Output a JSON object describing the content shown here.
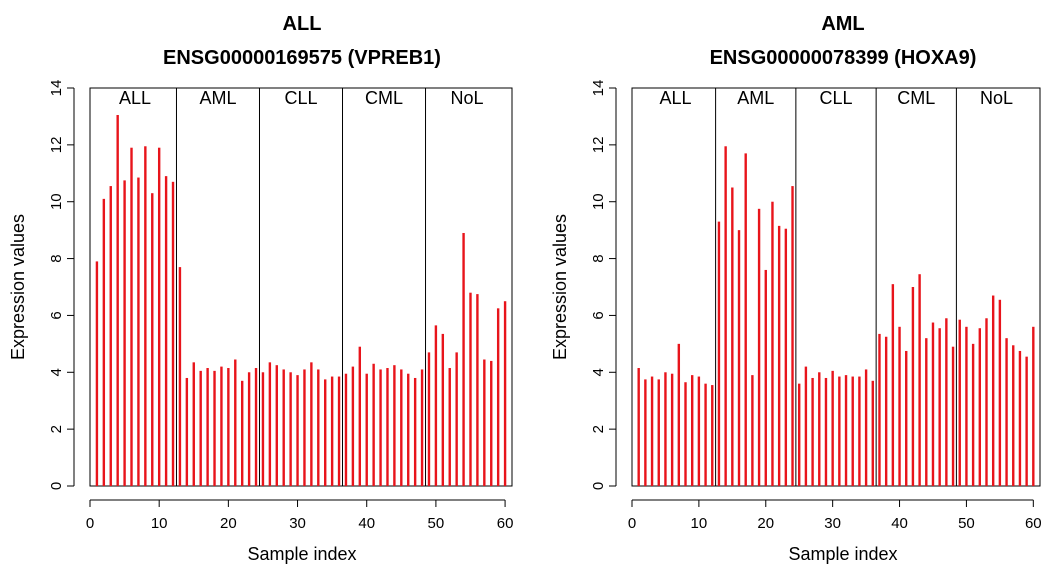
{
  "colors": {
    "bar": "#e8141b",
    "axis": "#000000",
    "background": "#ffffff"
  },
  "chart_data": [
    {
      "type": "bar",
      "title": "ALL",
      "subtitle": "ENSG00000169575 (VPREB1)",
      "xlabel": "Sample index",
      "ylabel": "Expression values",
      "xlim": [
        0,
        61
      ],
      "ylim": [
        0,
        14
      ],
      "xticks": [
        0,
        10,
        20,
        30,
        40,
        50,
        60
      ],
      "yticks": [
        0,
        2,
        4,
        6,
        8,
        10,
        12,
        14
      ],
      "groups": [
        "ALL",
        "AML",
        "CLL",
        "CML",
        "NoL"
      ],
      "group_separators": [
        12.5,
        24.5,
        36.5,
        48.5
      ],
      "grid": false,
      "x": [
        1,
        2,
        3,
        4,
        5,
        6,
        7,
        8,
        9,
        10,
        11,
        12,
        13,
        14,
        15,
        16,
        17,
        18,
        19,
        20,
        21,
        22,
        23,
        24,
        25,
        26,
        27,
        28,
        29,
        30,
        31,
        32,
        33,
        34,
        35,
        36,
        37,
        38,
        39,
        40,
        41,
        42,
        43,
        44,
        45,
        46,
        47,
        48,
        49,
        50,
        51,
        52,
        53,
        54,
        55,
        56,
        57,
        58,
        59,
        60
      ],
      "values": [
        7.9,
        10.1,
        10.55,
        13.05,
        10.75,
        11.9,
        10.85,
        11.95,
        10.3,
        11.9,
        10.9,
        10.7,
        7.7,
        3.8,
        4.35,
        4.05,
        4.15,
        4.05,
        4.2,
        4.15,
        4.45,
        3.7,
        4.0,
        4.15,
        4.0,
        4.35,
        4.25,
        4.1,
        4.0,
        3.9,
        4.1,
        4.35,
        4.1,
        3.75,
        3.85,
        3.85,
        3.95,
        4.2,
        4.9,
        3.95,
        4.3,
        4.1,
        4.15,
        4.25,
        4.1,
        3.95,
        3.8,
        4.1,
        4.7,
        5.65,
        5.35,
        4.15,
        4.7,
        8.9,
        6.8,
        6.75,
        4.45,
        4.4,
        6.25,
        6.5
      ]
    },
    {
      "type": "bar",
      "title": "AML",
      "subtitle": "ENSG00000078399 (HOXA9)",
      "xlabel": "Sample index",
      "ylabel": "Expression values",
      "xlim": [
        0,
        61
      ],
      "ylim": [
        0,
        14
      ],
      "xticks": [
        0,
        10,
        20,
        30,
        40,
        50,
        60
      ],
      "yticks": [
        0,
        2,
        4,
        6,
        8,
        10,
        12,
        14
      ],
      "groups": [
        "ALL",
        "AML",
        "CLL",
        "CML",
        "NoL"
      ],
      "group_separators": [
        12.5,
        24.5,
        36.5,
        48.5
      ],
      "grid": false,
      "x": [
        1,
        2,
        3,
        4,
        5,
        6,
        7,
        8,
        9,
        10,
        11,
        12,
        13,
        14,
        15,
        16,
        17,
        18,
        19,
        20,
        21,
        22,
        23,
        24,
        25,
        26,
        27,
        28,
        29,
        30,
        31,
        32,
        33,
        34,
        35,
        36,
        37,
        38,
        39,
        40,
        41,
        42,
        43,
        44,
        45,
        46,
        47,
        48,
        49,
        50,
        51,
        52,
        53,
        54,
        55,
        56,
        57,
        58,
        59,
        60
      ],
      "values": [
        4.15,
        3.75,
        3.85,
        3.75,
        4.0,
        3.95,
        5.0,
        3.65,
        3.9,
        3.85,
        3.6,
        3.55,
        9.3,
        11.95,
        10.5,
        9.0,
        11.7,
        3.9,
        9.75,
        7.6,
        10.0,
        9.15,
        9.05,
        10.55,
        3.6,
        4.2,
        3.8,
        4.0,
        3.8,
        4.05,
        3.85,
        3.9,
        3.85,
        3.85,
        4.1,
        3.7,
        5.35,
        5.25,
        7.1,
        5.6,
        4.75,
        7.0,
        7.45,
        5.2,
        5.75,
        5.55,
        5.9,
        4.9,
        5.85,
        5.6,
        5.0,
        5.55,
        5.9,
        6.7,
        6.55,
        5.2,
        4.95,
        4.75,
        4.55,
        5.6
      ]
    }
  ]
}
